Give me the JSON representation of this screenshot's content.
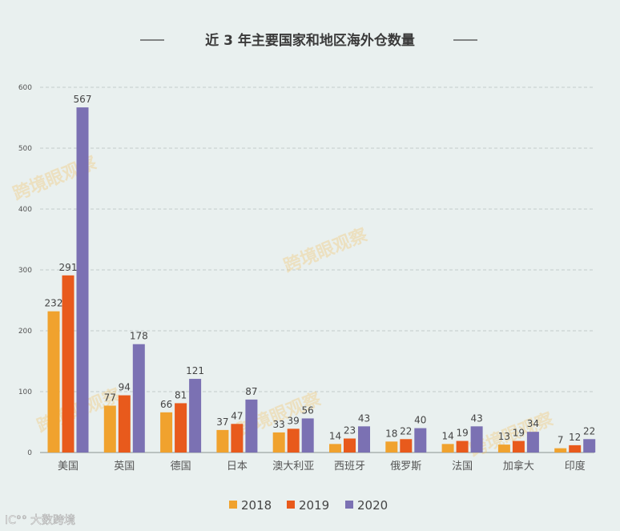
{
  "chart_data": {
    "type": "bar",
    "title": "近 3 年主要国家和地区海外仓数量",
    "categories": [
      "美国",
      "英国",
      "德国",
      "日本",
      "澳大利亚",
      "西班牙",
      "俄罗斯",
      "法国",
      "加拿大",
      "印度"
    ],
    "series": [
      {
        "name": "2018",
        "color": "#f0a22e",
        "values": [
          232,
          77,
          66,
          37,
          33,
          14,
          18,
          14,
          13,
          7
        ]
      },
      {
        "name": "2019",
        "color": "#e85a1c",
        "values": [
          291,
          94,
          81,
          47,
          39,
          23,
          22,
          19,
          19,
          12
        ]
      },
      {
        "name": "2020",
        "color": "#7b71b3",
        "values": [
          567,
          178,
          121,
          87,
          56,
          43,
          40,
          43,
          34,
          22
        ]
      }
    ],
    "yticks": [
      "0",
      "100",
      "200",
      "300",
      "400",
      "500",
      "600"
    ],
    "ylim": [
      0,
      600
    ],
    "grid": true,
    "legend": "bottom-center",
    "data_labels": true
  },
  "watermark": "跨境眼观察",
  "logo": "大数跨境"
}
